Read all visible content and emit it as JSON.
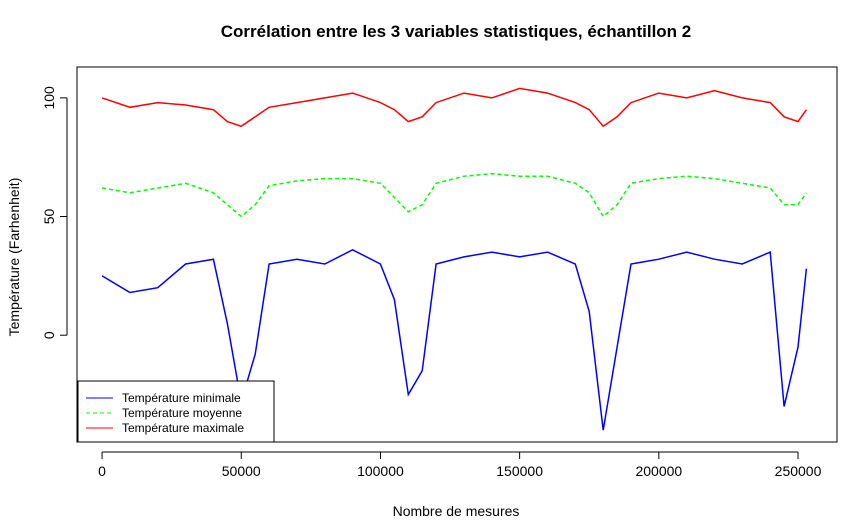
{
  "chart_data": {
    "type": "line",
    "title": "Corrélation entre les 3 variables statistiques, échantillon 2",
    "xlabel": "Nombre de mesures",
    "ylabel": "Température (Farhenheit)",
    "xlim": [
      -9000,
      264000
    ],
    "ylim": [
      -45,
      113
    ],
    "x_ticks": [
      0,
      50000,
      100000,
      150000,
      200000,
      250000
    ],
    "x_tick_labels": [
      "0",
      "50000",
      "100000",
      "150000",
      "200000",
      "250000"
    ],
    "y_ticks": [
      0,
      50,
      100
    ],
    "y_tick_labels": [
      "0",
      "50",
      "100"
    ],
    "legend_position": "bottom-left",
    "x": [
      0,
      10000,
      20000,
      30000,
      40000,
      45000,
      50000,
      55000,
      60000,
      70000,
      80000,
      90000,
      100000,
      105000,
      110000,
      115000,
      120000,
      130000,
      140000,
      150000,
      160000,
      170000,
      175000,
      180000,
      185000,
      190000,
      200000,
      210000,
      220000,
      230000,
      240000,
      245000,
      250000,
      253000
    ],
    "series": [
      {
        "name": "Température minimale",
        "color": "#0000ff",
        "line_style": "solid",
        "values": [
          25,
          18,
          20,
          30,
          32,
          5,
          -28,
          -8,
          30,
          32,
          30,
          36,
          30,
          15,
          -25,
          -15,
          30,
          33,
          35,
          33,
          35,
          30,
          10,
          -40,
          -5,
          30,
          32,
          35,
          32,
          30,
          35,
          -30,
          -5,
          28
        ]
      },
      {
        "name": "Température moyenne",
        "color": "#00ff00",
        "line_style": "dashed",
        "values": [
          62,
          60,
          62,
          64,
          60,
          55,
          50,
          55,
          63,
          65,
          66,
          66,
          64,
          58,
          52,
          55,
          64,
          67,
          68,
          67,
          67,
          64,
          60,
          50,
          55,
          64,
          66,
          67,
          66,
          64,
          62,
          55,
          55,
          60
        ]
      },
      {
        "name": "Température maximale",
        "color": "#ff0000",
        "line_style": "solid",
        "values": [
          100,
          96,
          98,
          97,
          95,
          90,
          88,
          92,
          96,
          98,
          100,
          102,
          98,
          95,
          90,
          92,
          98,
          102,
          100,
          104,
          102,
          98,
          95,
          88,
          92,
          98,
          102,
          100,
          103,
          100,
          98,
          92,
          90,
          95
        ]
      }
    ]
  }
}
